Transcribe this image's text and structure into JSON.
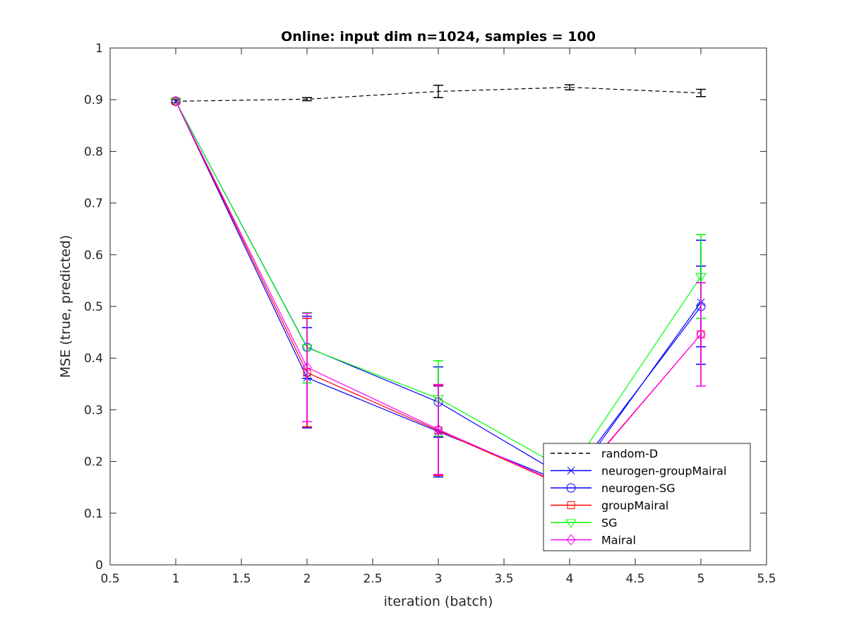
{
  "chart_data": {
    "type": "line",
    "title": "Online:  input dim n=1024, samples = 100",
    "xlabel": "iteration (batch)",
    "ylabel": "MSE (true, predicted)",
    "xlim": [
      0.5,
      5.5
    ],
    "ylim": [
      0,
      1
    ],
    "x_ticks": [
      "0.5",
      "1",
      "1.5",
      "2",
      "2.5",
      "3",
      "3.5",
      "4",
      "4.5",
      "5",
      "5.5"
    ],
    "y_ticks": [
      "0",
      "0.1",
      "0.2",
      "0.3",
      "0.4",
      "0.5",
      "0.6",
      "0.7",
      "0.8",
      "0.9",
      "1"
    ],
    "x": [
      1,
      2,
      3,
      4,
      5
    ],
    "grid": false,
    "legend_position": "bottom-right",
    "series": [
      {
        "name": "random-D",
        "color": "#000000",
        "marker": "none",
        "dashed": true,
        "values": [
          0.897,
          0.901,
          0.916,
          0.924,
          0.913
        ],
        "errors": [
          0.003,
          0.003,
          0.012,
          0.005,
          0.007
        ]
      },
      {
        "name": "neurogen-groupMairal",
        "color": "#0000ff",
        "marker": "x",
        "dashed": false,
        "values": [
          0.897,
          0.362,
          0.258,
          0.155,
          0.508
        ],
        "errors": [
          0.0,
          0.097,
          0.088,
          0.03,
          0.12
        ]
      },
      {
        "name": "neurogen-SG",
        "color": "#0000ff",
        "marker": "circle",
        "dashed": false,
        "values": [
          0.897,
          0.421,
          0.315,
          0.165,
          0.5
        ],
        "errors": [
          0.0,
          0.06,
          0.068,
          0.03,
          0.078
        ]
      },
      {
        "name": "groupMairal",
        "color": "#ff0000",
        "marker": "square",
        "dashed": false,
        "values": [
          0.897,
          0.372,
          0.26,
          0.148,
          0.446
        ],
        "errors": [
          0.0,
          0.105,
          0.087,
          0.03,
          0.1
        ]
      },
      {
        "name": "SG",
        "color": "#00ff00",
        "marker": "triangle-down",
        "dashed": false,
        "values": [
          0.897,
          0.42,
          0.322,
          0.18,
          0.558
        ],
        "errors": [
          0.0,
          0.068,
          0.073,
          0.03,
          0.081
        ]
      },
      {
        "name": "Mairal",
        "color": "#ff00ff",
        "marker": "diamond",
        "dashed": false,
        "values": [
          0.897,
          0.382,
          0.262,
          0.15,
          0.446
        ],
        "errors": [
          0.0,
          0.105,
          0.087,
          0.03,
          0.1
        ]
      }
    ]
  }
}
